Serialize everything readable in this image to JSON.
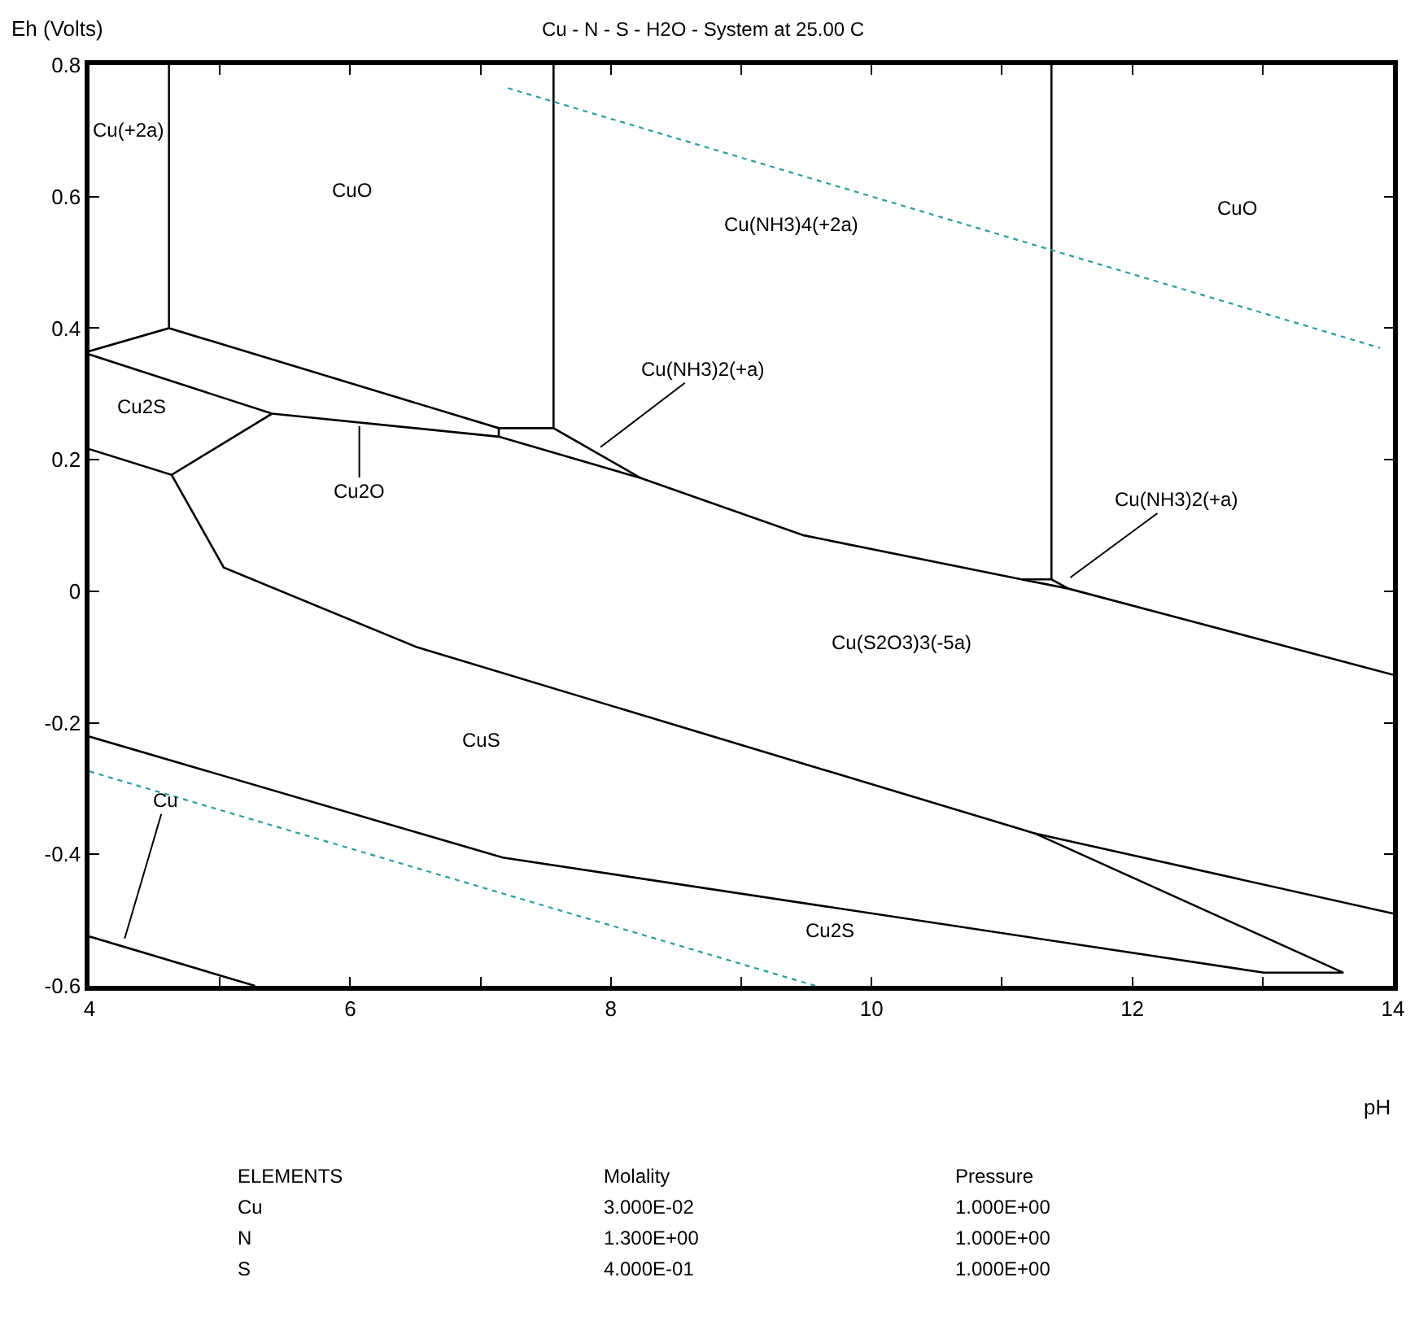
{
  "chart_data": {
    "type": "line",
    "title": "Cu - N - S - H2O - System at 25.00 C",
    "xlabel": "pH",
    "ylabel": "Eh (Volts)",
    "xlim": [
      4,
      14
    ],
    "ylim": [
      -0.6,
      0.8
    ],
    "xticks": [
      4,
      {
        "value": 5,
        "label": null
      },
      6,
      {
        "value": 7,
        "label": null
      },
      8,
      {
        "value": 9,
        "label": null
      },
      10,
      {
        "value": 11,
        "label": null
      },
      12,
      {
        "value": 13,
        "label": null
      },
      14
    ],
    "yticks": [
      -0.6,
      -0.4,
      -0.2,
      0.0,
      0.2,
      0.4,
      0.6,
      0.8
    ],
    "marker": "none",
    "series": [
      {
        "color": "#000000",
        "x": [
          4.61,
          4.61
        ],
        "values": [
          0.8,
          0.4
        ]
      },
      {
        "color": "#000000",
        "x": [
          4.0,
          4.61,
          7.14,
          7.56
        ],
        "values": [
          0.365,
          0.4,
          0.248,
          0.248
        ]
      },
      {
        "color": "#000000",
        "x": [
          7.56,
          7.56
        ],
        "values": [
          0.248,
          0.8
        ]
      },
      {
        "color": "#000000",
        "x": [
          7.14,
          7.14
        ],
        "values": [
          0.248,
          0.235
        ]
      },
      {
        "color": "#000000",
        "x": [
          4.0,
          5.4,
          7.14,
          8.23,
          9.48,
          11.15,
          11.51,
          14.0
        ],
        "values": [
          0.36,
          0.27,
          0.235,
          0.172,
          0.085,
          0.018,
          0.004,
          -0.127
        ]
      },
      {
        "color": "#000000",
        "x": [
          7.56,
          8.23
        ],
        "values": [
          0.248,
          0.172
        ]
      },
      {
        "color": "#000000",
        "x": [
          11.38,
          11.38
        ],
        "values": [
          0.8,
          0.018
        ]
      },
      {
        "color": "#000000",
        "x": [
          11.15,
          11.38,
          11.51
        ],
        "values": [
          0.018,
          0.018,
          0.004
        ]
      },
      {
        "color": "#000000",
        "x": [
          5.4,
          4.63
        ],
        "values": [
          0.27,
          0.177
        ]
      },
      {
        "color": "#000000",
        "x": [
          4.0,
          4.63,
          5.03,
          6.51,
          11.25,
          14.0
        ],
        "values": [
          0.216,
          0.177,
          0.036,
          -0.085,
          -0.368,
          -0.49
        ]
      },
      {
        "color": "#000000",
        "x": [
          4.0,
          7.17,
          13.01,
          13.62,
          11.25
        ],
        "values": [
          -0.221,
          -0.405,
          -0.58,
          -0.58,
          -0.368
        ]
      },
      {
        "color": "#000000",
        "x": [
          4.0,
          5.27
        ],
        "values": [
          -0.525,
          -0.6
        ]
      },
      {
        "color": "#2a9d9d",
        "line_style": "dotted",
        "x": [
          7.21,
          13.9
        ],
        "values": [
          0.765,
          0.37
        ]
      },
      {
        "color": "#2a9d9d",
        "line_style": "dotted",
        "x": [
          4.0,
          9.57
        ],
        "values": [
          -0.274,
          -0.6
        ]
      }
    ],
    "annotations": [
      {
        "text": "Cu(NH3)2(+a)",
        "x": 7.92,
        "y": 0.219
      },
      {
        "text": "Cu2O",
        "x": 6.07,
        "y": 0.251
      },
      {
        "text": "Cu",
        "x": 4.27,
        "y": -0.528
      },
      "Cu(+2a)",
      "CuO",
      "Cu(NH3)4(+2a)",
      "CuO",
      "Cu2S",
      "Cu(NH3)2(+a)",
      "Cu(S2O3)3(-5a)",
      "CuS",
      "Cu2S",
      "ELEMENTS",
      "Molality",
      "Pressure",
      "Cu",
      "3.000E-02",
      "1.000E+00",
      "N",
      "1.300E+00",
      "1.000E+00",
      "S",
      "4.000E-01",
      "1.000E+00"
    ]
  }
}
